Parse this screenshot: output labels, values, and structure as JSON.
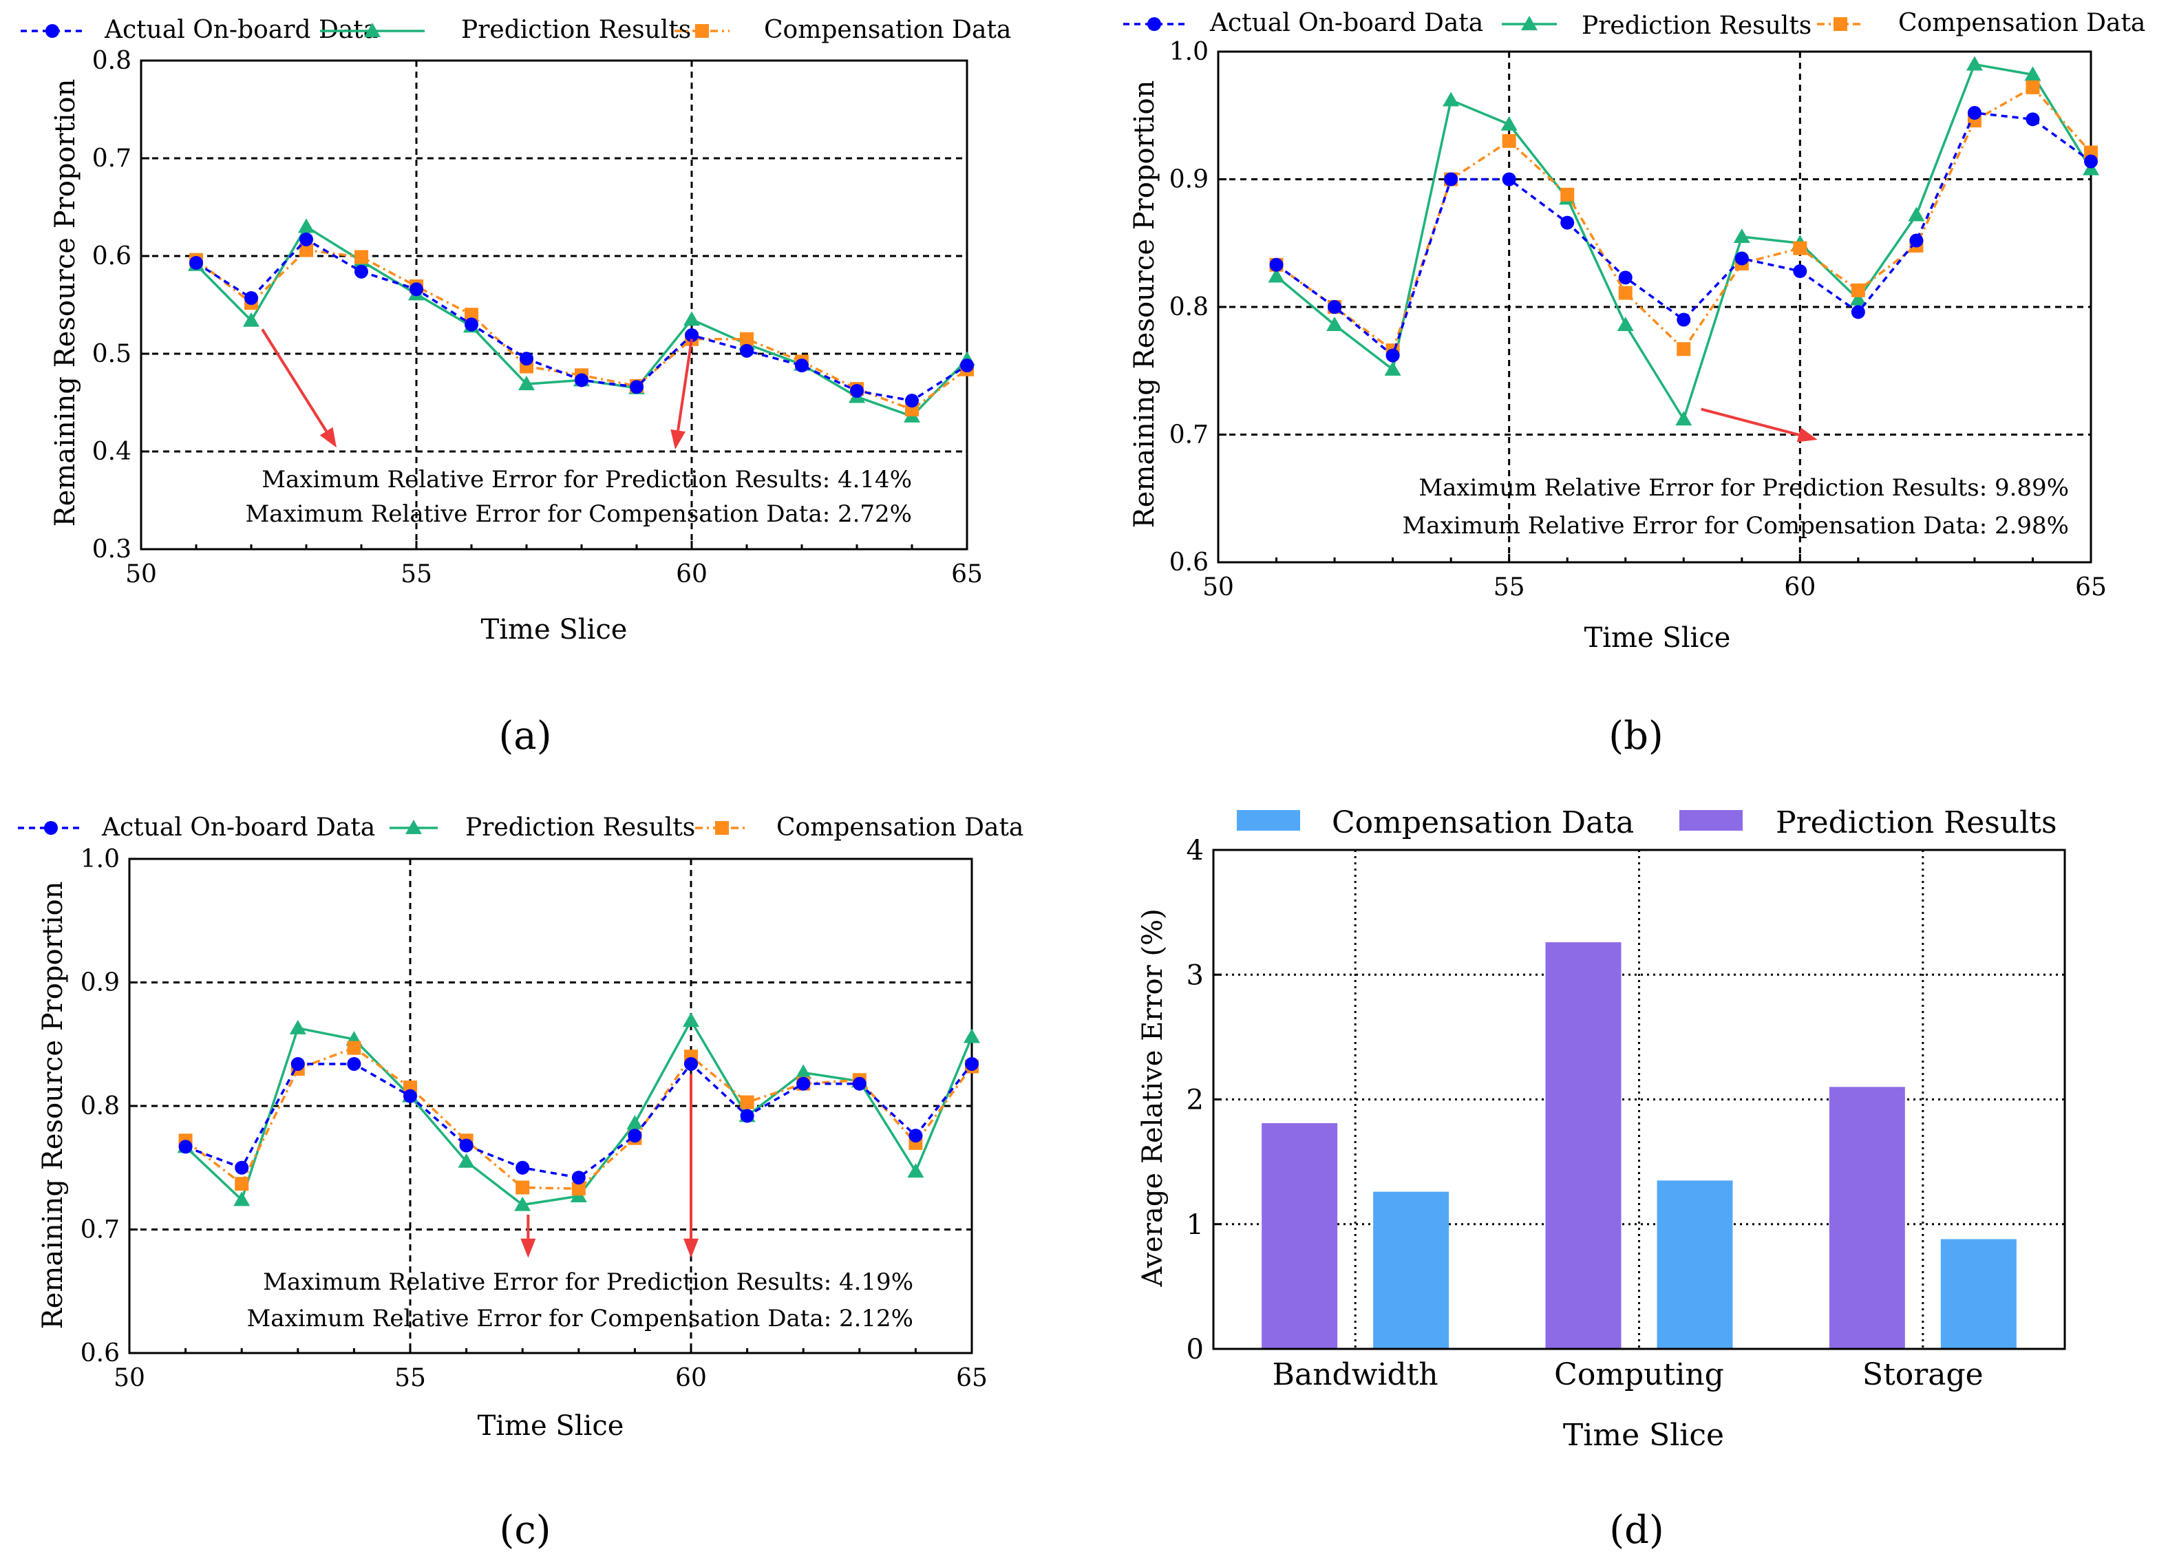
{
  "figure": {
    "panels": [
      {
        "label": "(a)"
      },
      {
        "label": "(b)"
      },
      {
        "label": "(c)"
      },
      {
        "label": "(d)"
      }
    ]
  },
  "chart_data": [
    {
      "type": "line",
      "panel_label": "(a)",
      "xlabel": "Time Slice",
      "ylabel": "Remaining Resource Proportion",
      "xlim": [
        50,
        65
      ],
      "ylim": [
        0.3,
        0.8
      ],
      "xticks": [
        50,
        55,
        60,
        65
      ],
      "yticks": [
        0.3,
        0.4,
        0.5,
        0.6,
        0.7,
        0.8
      ],
      "grid_x": [
        55,
        60
      ],
      "grid_y": [
        0.4,
        0.5,
        0.6,
        0.7
      ],
      "legend": "top",
      "x": [
        51,
        52,
        53,
        54,
        55,
        56,
        57,
        58,
        59,
        60,
        61,
        62,
        63,
        64,
        65
      ],
      "series": [
        {
          "name": "Actual On-board Data",
          "color": "#0000ff",
          "marker": "circle",
          "dash": "dashed",
          "values": [
            0.593,
            0.557,
            0.617,
            0.584,
            0.566,
            0.53,
            0.495,
            0.473,
            0.466,
            0.519,
            0.503,
            0.488,
            0.462,
            0.452,
            0.488
          ]
        },
        {
          "name": "Prediction Results",
          "color": "#1fb37b",
          "marker": "triangle",
          "dash": "solid",
          "values": [
            0.591,
            0.534,
            0.63,
            0.595,
            0.561,
            0.528,
            0.469,
            0.473,
            0.465,
            0.535,
            0.51,
            0.489,
            0.456,
            0.436,
            0.494
          ]
        },
        {
          "name": "Compensation Data",
          "color": "#ff8c1a",
          "marker": "square",
          "dash": "dashdot",
          "values": [
            0.596,
            0.552,
            0.606,
            0.599,
            0.569,
            0.54,
            0.487,
            0.478,
            0.467,
            0.515,
            0.515,
            0.492,
            0.464,
            0.443,
            0.484
          ]
        }
      ],
      "arrows": [
        {
          "from": [
            52.2,
            0.525
          ],
          "to": [
            53.55,
            0.404
          ]
        },
        {
          "from": [
            60.0,
            0.515
          ],
          "to": [
            59.7,
            0.402
          ]
        }
      ],
      "annotations": [
        "Maximum Relative Error for Prediction Results: 4.14%",
        "Maximum Relative Error for Compensation Data: 2.72%"
      ]
    },
    {
      "type": "line",
      "panel_label": "(b)",
      "xlabel": "Time Slice",
      "ylabel": "Remaining Resource Proportion",
      "xlim": [
        50,
        65
      ],
      "ylim": [
        0.6,
        1.0
      ],
      "xticks": [
        50,
        55,
        60,
        65
      ],
      "yticks": [
        0.6,
        0.7,
        0.8,
        0.9,
        1.0
      ],
      "grid_x": [
        55,
        60
      ],
      "grid_y": [
        0.7,
        0.8,
        0.9
      ],
      "legend": "top",
      "x": [
        51,
        52,
        53,
        54,
        55,
        56,
        57,
        58,
        59,
        60,
        61,
        62,
        63,
        64,
        65
      ],
      "series": [
        {
          "name": "Actual On-board Data",
          "color": "#0000ff",
          "marker": "circle",
          "dash": "dashed",
          "values": [
            0.833,
            0.8,
            0.762,
            0.9,
            0.9,
            0.866,
            0.823,
            0.79,
            0.838,
            0.828,
            0.796,
            0.852,
            0.952,
            0.947,
            0.914
          ]
        },
        {
          "name": "Prediction Results",
          "color": "#1fb37b",
          "marker": "triangle",
          "dash": "solid",
          "values": [
            0.824,
            0.786,
            0.751,
            0.962,
            0.943,
            0.885,
            0.786,
            0.712,
            0.855,
            0.85,
            0.806,
            0.872,
            0.99,
            0.982,
            0.908
          ]
        },
        {
          "name": "Compensation Data",
          "color": "#ff8c1a",
          "marker": "square",
          "dash": "dashdot",
          "values": [
            0.833,
            0.8,
            0.766,
            0.9,
            0.93,
            0.888,
            0.811,
            0.767,
            0.834,
            0.846,
            0.813,
            0.848,
            0.946,
            0.972,
            0.921
          ]
        }
      ],
      "arrows": [
        {
          "from": [
            58.3,
            0.72
          ],
          "to": [
            60.3,
            0.696
          ]
        }
      ],
      "annotations": [
        "Maximum Relative Error for Prediction Results: 9.89%",
        "Maximum Relative Error for Compensation Data: 2.98%"
      ]
    },
    {
      "type": "line",
      "panel_label": "(c)",
      "xlabel": "Time Slice",
      "ylabel": "Remaining Resource Proportion",
      "xlim": [
        50,
        65
      ],
      "ylim": [
        0.6,
        1.0
      ],
      "xticks": [
        50,
        55,
        60,
        65
      ],
      "yticks": [
        0.6,
        0.7,
        0.8,
        0.9,
        1.0
      ],
      "grid_x": [
        55,
        60
      ],
      "grid_y": [
        0.7,
        0.8,
        0.9
      ],
      "legend": "top",
      "x": [
        51,
        52,
        53,
        54,
        55,
        56,
        57,
        58,
        59,
        60,
        61,
        62,
        63,
        64,
        65
      ],
      "series": [
        {
          "name": "Actual On-board Data",
          "color": "#0000ff",
          "marker": "circle",
          "dash": "dashed",
          "values": [
            0.767,
            0.75,
            0.834,
            0.834,
            0.808,
            0.768,
            0.75,
            0.742,
            0.776,
            0.834,
            0.792,
            0.818,
            0.818,
            0.776,
            0.834
          ]
        },
        {
          "name": "Prediction Results",
          "color": "#1fb37b",
          "marker": "triangle",
          "dash": "solid",
          "values": [
            0.767,
            0.724,
            0.863,
            0.854,
            0.808,
            0.755,
            0.72,
            0.727,
            0.786,
            0.869,
            0.792,
            0.827,
            0.82,
            0.747,
            0.856
          ]
        },
        {
          "name": "Compensation Data",
          "color": "#ff8c1a",
          "marker": "square",
          "dash": "dashdot",
          "values": [
            0.772,
            0.737,
            0.83,
            0.847,
            0.815,
            0.772,
            0.734,
            0.733,
            0.774,
            0.84,
            0.803,
            0.818,
            0.821,
            0.77,
            0.832
          ]
        }
      ],
      "arrows": [
        {
          "from": [
            57.1,
            0.712
          ],
          "to": [
            57.1,
            0.677
          ]
        },
        {
          "from": [
            60.0,
            0.826
          ],
          "to": [
            60.0,
            0.677
          ]
        }
      ],
      "annotations": [
        "Maximum Relative Error for Prediction Results: 4.19%",
        "Maximum Relative Error for Compensation Data: 2.12%"
      ]
    },
    {
      "type": "bar",
      "panel_label": "(d)",
      "xlabel": "Time Slice",
      "ylabel": "Average Relative Error (%)",
      "ylim": [
        0,
        4
      ],
      "yticks": [
        0,
        1,
        2,
        3,
        4
      ],
      "grid_y": [
        1,
        2,
        3
      ],
      "legend": "top",
      "categories": [
        "Bandwidth",
        "Computing",
        "Storage"
      ],
      "series": [
        {
          "name": "Compensation Data",
          "color": "#52a8f7",
          "values": [
            1.26,
            1.35,
            0.88
          ]
        },
        {
          "name": "Prediction Results",
          "color": "#8e6be6",
          "values": [
            1.81,
            3.26,
            2.1
          ]
        }
      ]
    }
  ]
}
